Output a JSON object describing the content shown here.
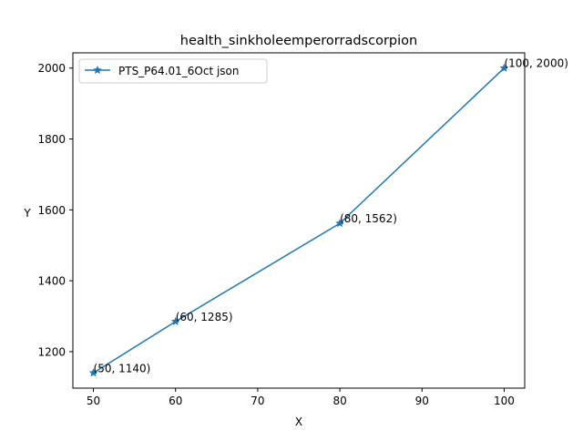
{
  "chart_data": {
    "type": "line",
    "title": "health_sinkholeemperorradscorpion",
    "xlabel": "X",
    "ylabel": "Y",
    "xlim": [
      47.5,
      102.5
    ],
    "ylim": [
      1097,
      2043
    ],
    "xticks": [
      50,
      60,
      70,
      80,
      90,
      100
    ],
    "yticks": [
      1200,
      1400,
      1600,
      1800,
      2000
    ],
    "grid": false,
    "legend_position": "upper-left",
    "series": [
      {
        "name": "PTS_P64.01_6Oct json",
        "color": "#1f77b4",
        "marker": "star",
        "points": [
          {
            "x": 50,
            "y": 1140,
            "label": "(50, 1140)"
          },
          {
            "x": 60,
            "y": 1285,
            "label": "(60, 1285)"
          },
          {
            "x": 80,
            "y": 1562,
            "label": "(80, 1562)"
          },
          {
            "x": 100,
            "y": 2000,
            "label": "(100, 2000)"
          }
        ]
      }
    ]
  }
}
